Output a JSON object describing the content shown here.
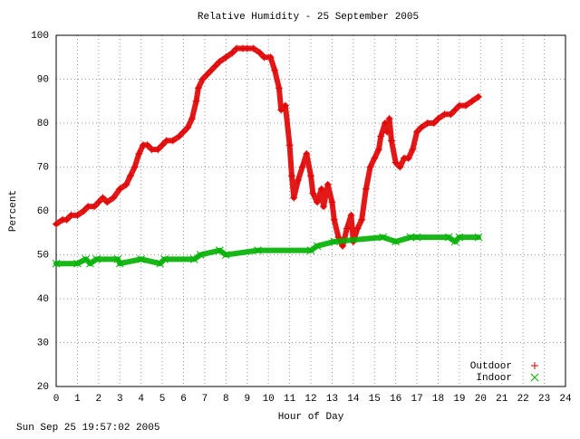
{
  "chart_data": {
    "type": "scatter",
    "title": "Relative Humidity - 25 September 2005",
    "x_label": "Hour of Day",
    "y_label": "Percent",
    "footer": "Sun Sep 25 19:57:02 2005",
    "xlim": [
      0,
      24
    ],
    "xticks": [
      0,
      1,
      2,
      3,
      4,
      5,
      6,
      7,
      8,
      9,
      10,
      11,
      12,
      13,
      14,
      15,
      16,
      17,
      18,
      19,
      20,
      21,
      22,
      23,
      24
    ],
    "ylim": [
      20,
      100
    ],
    "yticks": [
      20,
      30,
      40,
      50,
      60,
      70,
      80,
      90,
      100
    ],
    "grid": true,
    "legend": "lower right",
    "series": [
      {
        "name": "Outdoor",
        "color": "#e00000",
        "marker": "+",
        "x": [
          0,
          0.3,
          0.5,
          0.7,
          1,
          1.3,
          1.5,
          1.8,
          2,
          2.2,
          2.4,
          2.7,
          3,
          3.3,
          3.5,
          3.7,
          3.9,
          4.1,
          4.3,
          4.5,
          4.8,
          5,
          5.2,
          5.5,
          5.8,
          6,
          6.2,
          6.4,
          6.6,
          6.7,
          6.9,
          7.1,
          7.3,
          7.5,
          7.7,
          8,
          8.3,
          8.5,
          8.8,
          9,
          9.3,
          9.6,
          9.8,
          10.1,
          10.3,
          10.5,
          10.6,
          10.8,
          11,
          11.1,
          11.2,
          11.4,
          11.6,
          11.8,
          12,
          12.1,
          12.3,
          12.5,
          12.6,
          12.8,
          13,
          13.1,
          13.3,
          13.5,
          13.7,
          13.9,
          14,
          14.2,
          14.4,
          14.6,
          14.8,
          15,
          15.2,
          15.3,
          15.5,
          15.6,
          15.7,
          15.8,
          16,
          16.2,
          16.4,
          16.6,
          16.8,
          17,
          17.2,
          17.5,
          17.8,
          18,
          18.3,
          18.6,
          18.8,
          19,
          19.3,
          19.6,
          19.9
        ],
        "values": [
          57,
          58,
          58,
          59,
          59,
          60,
          61,
          61,
          62,
          63,
          62,
          63,
          65,
          66,
          68,
          70,
          73,
          75,
          75,
          74,
          74,
          75,
          76,
          76,
          77,
          78,
          79,
          81,
          85,
          88,
          90,
          91,
          92,
          93,
          94,
          95,
          96,
          97,
          97,
          97,
          97,
          96,
          95,
          95,
          92,
          88,
          83,
          84,
          75,
          68,
          63,
          67,
          70,
          73,
          68,
          64,
          62,
          65,
          61,
          66,
          62,
          58,
          54,
          52,
          56,
          59,
          53,
          56,
          58,
          65,
          70,
          72,
          74,
          77,
          80,
          78,
          81,
          76,
          71,
          70,
          72,
          72,
          74,
          78,
          79,
          80,
          80,
          81,
          82,
          82,
          83,
          84,
          84,
          85,
          86
        ]
      },
      {
        "name": "Indoor",
        "color": "#00b000",
        "marker": "x",
        "x": [
          0,
          1,
          1.4,
          1.6,
          1.9,
          2.9,
          3,
          4,
          4.9,
          5.1,
          6.5,
          6.8,
          7.7,
          8,
          9.5,
          12,
          12.3,
          13.1,
          15.4,
          16,
          16.7,
          17,
          18.5,
          18.8,
          19,
          19.9
        ],
        "values": [
          48,
          48,
          49,
          48,
          49,
          49,
          48,
          49,
          48,
          49,
          49,
          50,
          51,
          50,
          51,
          51,
          52,
          53,
          54,
          53,
          54,
          54,
          54,
          53,
          54,
          54
        ]
      }
    ]
  }
}
